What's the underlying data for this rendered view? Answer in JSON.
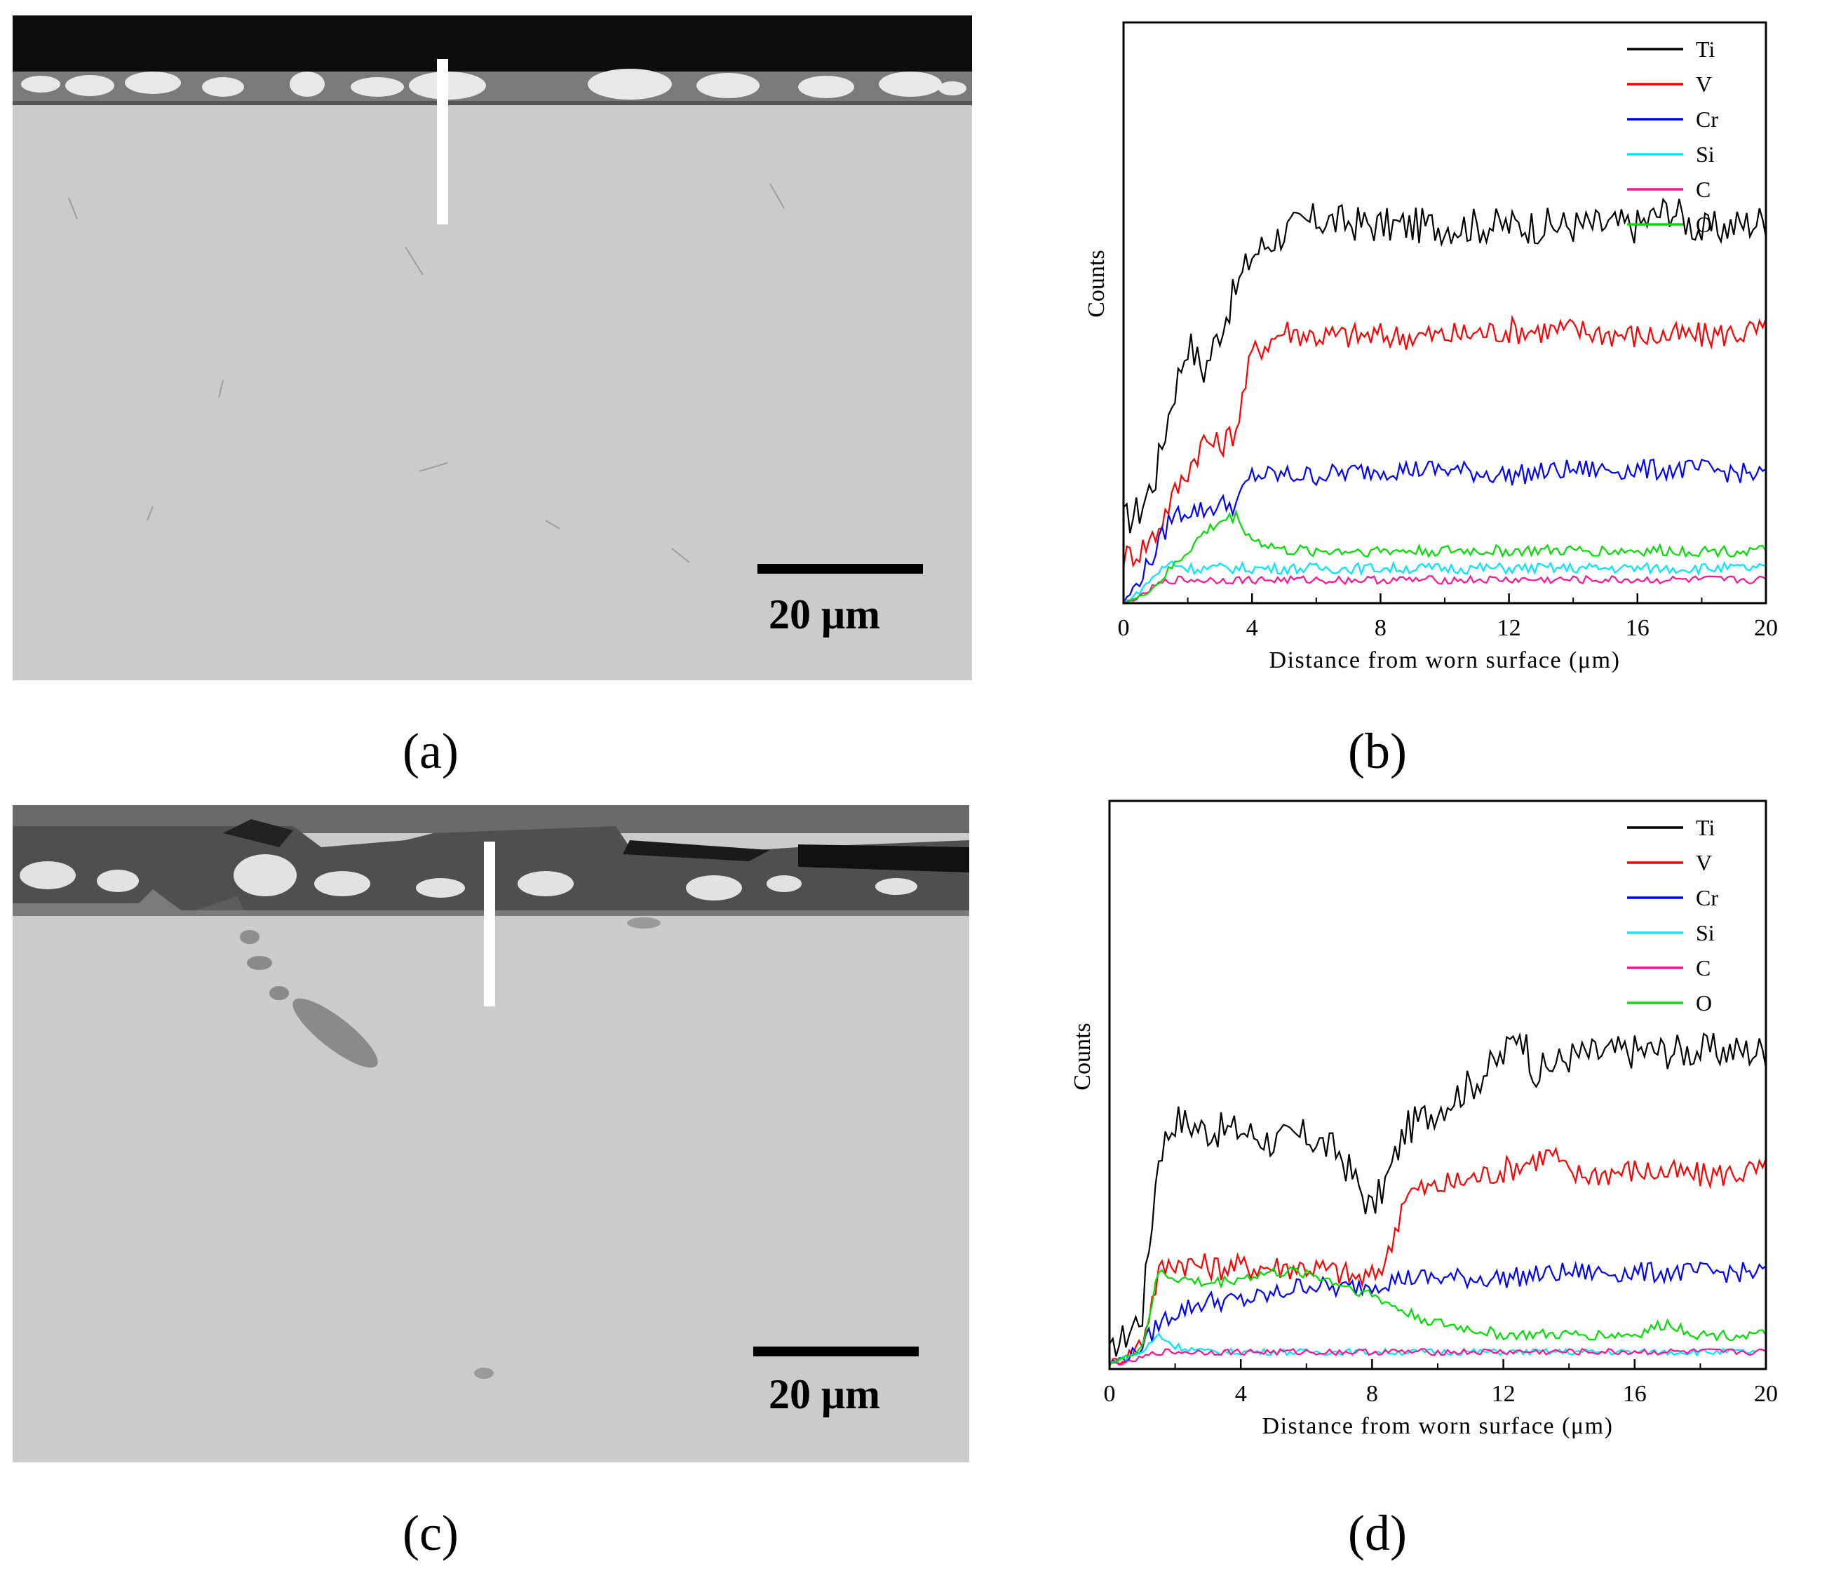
{
  "panels": {
    "a": {
      "label": "(a)",
      "scale_label": "20 μm"
    },
    "b": {
      "label": "(b)"
    },
    "c": {
      "label": "(c)",
      "scale_label": "20 μm"
    },
    "d": {
      "label": "(d)"
    }
  },
  "colors": {
    "Ti": "#000000",
    "V": "#ff0000",
    "Cr": "#0000ff",
    "Si": "#00e5ff",
    "C": "#ff1493",
    "O": "#00dd00"
  },
  "chart_data": [
    {
      "panel": "b",
      "type": "line",
      "xlabel": "Distance from worn surface (μm)",
      "ylabel": "Counts",
      "xlim": [
        0,
        20
      ],
      "ylim": [
        0,
        100
      ],
      "xticks": [
        0,
        4,
        8,
        12,
        16,
        20
      ],
      "legend_position": "top-right",
      "series": [
        {
          "name": "Ti",
          "x": [
            0,
            0.5,
            1,
            1.5,
            2,
            2.5,
            3,
            3.5,
            4,
            5,
            6,
            8,
            10,
            12,
            14,
            16,
            17,
            18,
            20
          ],
          "y": [
            14,
            16,
            22,
            35,
            45,
            40,
            47,
            54,
            60,
            64,
            66,
            65,
            65,
            65,
            65,
            65,
            68,
            64,
            66
          ]
        },
        {
          "name": "V",
          "x": [
            0,
            0.5,
            1,
            1.5,
            2,
            2.5,
            3,
            3.5,
            4,
            5,
            6,
            8,
            10,
            12,
            14,
            16,
            18,
            20
          ],
          "y": [
            8,
            9,
            12,
            18,
            23,
            28,
            27,
            30,
            43,
            47,
            46,
            46,
            46,
            47,
            47,
            46,
            46,
            47
          ]
        },
        {
          "name": "Cr",
          "x": [
            0,
            0.5,
            1,
            1.5,
            2,
            2.5,
            3,
            3.5,
            4,
            5,
            6,
            8,
            10,
            12,
            14,
            16,
            18,
            20
          ],
          "y": [
            0,
            4,
            9,
            15,
            16,
            16,
            17,
            17,
            22,
            22,
            22,
            23,
            23,
            22,
            23,
            23,
            23,
            22
          ]
        },
        {
          "name": "Si",
          "x": [
            0,
            0.5,
            1,
            1.5,
            2,
            3,
            4,
            6,
            8,
            10,
            12,
            14,
            16,
            18,
            20
          ],
          "y": [
            0,
            2,
            5,
            7,
            6,
            6,
            6,
            6,
            6,
            6,
            6,
            6,
            6,
            6,
            6
          ]
        },
        {
          "name": "C",
          "x": [
            0,
            0.5,
            1,
            1.5,
            2,
            3,
            4,
            6,
            8,
            10,
            12,
            14,
            16,
            18,
            20
          ],
          "y": [
            0,
            1,
            3,
            4,
            4,
            4,
            4,
            4,
            4,
            4,
            4,
            4,
            4,
            4,
            4
          ]
        },
        {
          "name": "O",
          "x": [
            0,
            0.5,
            1,
            1.5,
            2,
            2.5,
            3,
            3.5,
            4,
            5,
            6,
            8,
            10,
            12,
            14,
            16,
            18,
            20
          ],
          "y": [
            0,
            1,
            3,
            6,
            9,
            12,
            14,
            15,
            11,
            9,
            9,
            9,
            9,
            9,
            9,
            9,
            9,
            9
          ]
        }
      ]
    },
    {
      "panel": "d",
      "type": "line",
      "xlabel": "Distance from worn surface (μm)",
      "ylabel": "Counts",
      "xlim": [
        0,
        20
      ],
      "ylim": [
        0,
        100
      ],
      "xticks": [
        0,
        4,
        8,
        12,
        16,
        20
      ],
      "legend_position": "top-right",
      "series": [
        {
          "name": "Ti",
          "x": [
            0,
            0.5,
            1,
            1.5,
            2,
            3,
            4,
            5,
            6,
            7,
            7.5,
            8,
            8.5,
            9,
            10,
            11,
            12,
            12.5,
            13,
            14,
            16,
            18,
            20
          ],
          "y": [
            3,
            6,
            10,
            38,
            44,
            42,
            42,
            40,
            41,
            38,
            33,
            28,
            34,
            42,
            46,
            50,
            55,
            60,
            52,
            55,
            56,
            56,
            56
          ]
        },
        {
          "name": "V",
          "x": [
            0,
            0.5,
            1,
            1.5,
            2,
            3,
            4,
            5,
            6,
            7,
            7.5,
            8,
            8.5,
            9,
            10,
            12,
            13.5,
            14,
            16,
            18,
            20
          ],
          "y": [
            1,
            2,
            5,
            17,
            19,
            18,
            18,
            18,
            18,
            17,
            16,
            16,
            20,
            31,
            32,
            35,
            38,
            34,
            35,
            34,
            35
          ]
        },
        {
          "name": "Cr",
          "x": [
            0,
            0.5,
            1,
            1.5,
            2,
            3,
            4,
            5,
            6,
            7,
            8,
            9,
            10,
            12,
            14,
            16,
            18,
            20
          ],
          "y": [
            1,
            2,
            4,
            8,
            10,
            12,
            12,
            13,
            15,
            14,
            15,
            16,
            16,
            16,
            17,
            17,
            17,
            17
          ]
        },
        {
          "name": "Si",
          "x": [
            0,
            0.5,
            1,
            1.5,
            2,
            3,
            4,
            6,
            8,
            10,
            12,
            14,
            16,
            18,
            20
          ],
          "y": [
            1,
            2,
            3,
            6,
            4,
            3,
            3,
            3,
            3,
            3,
            3,
            3,
            3,
            3,
            3
          ]
        },
        {
          "name": "C",
          "x": [
            0,
            0.5,
            1,
            1.5,
            2,
            3,
            4,
            6,
            8,
            10,
            12,
            14,
            16,
            18,
            20
          ],
          "y": [
            1,
            1,
            2,
            3,
            3,
            3,
            3,
            3,
            3,
            3,
            3,
            3,
            3,
            3,
            3
          ]
        },
        {
          "name": "O",
          "x": [
            0,
            0.5,
            1,
            1.5,
            2,
            3,
            4,
            5,
            6,
            6.5,
            7,
            8,
            9,
            10,
            11,
            12,
            14,
            16,
            17,
            18,
            20
          ],
          "y": [
            1,
            2,
            4,
            17,
            16,
            15,
            16,
            17,
            17,
            16,
            15,
            13,
            10,
            8,
            7,
            6,
            6,
            6,
            8,
            6,
            6
          ]
        }
      ]
    }
  ]
}
